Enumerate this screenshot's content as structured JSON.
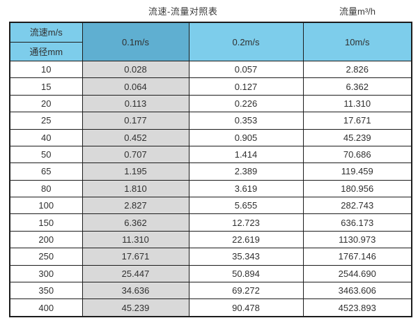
{
  "header": {
    "title": "流速-流量对照表",
    "unit_label": "流量m³/h"
  },
  "table": {
    "corner_top_label": "流速m/s",
    "corner_bottom_label": "通径mm",
    "velocity_headers": [
      "0.1m/s",
      "0.2m/s",
      "10m/s"
    ]
  },
  "colors": {
    "header_blue_light": "#7dcdeb",
    "header_blue_dark": "#5fafd1",
    "highlight_column_gray": "#d9d9d9",
    "table_border": "#1c1c1c",
    "text": "#303030"
  },
  "chart_data": {
    "type": "table",
    "title": "流速-流量对照表",
    "flow_unit_label": "流量m³/h",
    "columns": [
      "通径mm",
      "0.1m/s",
      "0.2m/s",
      "10m/s"
    ],
    "rows": [
      [
        "10",
        "0.028",
        "0.057",
        "2.826"
      ],
      [
        "15",
        "0.064",
        "0.127",
        "6.362"
      ],
      [
        "20",
        "0.113",
        "0.226",
        "11.310"
      ],
      [
        "25",
        "0.177",
        "0.353",
        "17.671"
      ],
      [
        "40",
        "0.452",
        "0.905",
        "45.239"
      ],
      [
        "50",
        "0.707",
        "1.414",
        "70.686"
      ],
      [
        "65",
        "1.195",
        "2.389",
        "119.459"
      ],
      [
        "80",
        "1.810",
        "3.619",
        "180.956"
      ],
      [
        "100",
        "2.827",
        "5.655",
        "282.743"
      ],
      [
        "150",
        "6.362",
        "12.723",
        "636.173"
      ],
      [
        "200",
        "11.310",
        "22.619",
        "1130.973"
      ],
      [
        "250",
        "17.671",
        "35.343",
        "1767.146"
      ],
      [
        "300",
        "25.447",
        "50.894",
        "2544.690"
      ],
      [
        "350",
        "34.636",
        "69.272",
        "3463.606"
      ],
      [
        "400",
        "45.239",
        "90.478",
        "4523.893"
      ]
    ]
  }
}
